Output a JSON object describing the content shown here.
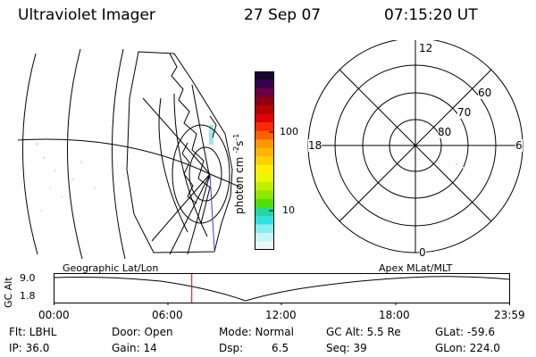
{
  "header": {
    "title": "Ultraviolet Imager",
    "date": "27 Sep 07",
    "time": "07:15:20 UT"
  },
  "colorbar": {
    "unit": "photon cm",
    "sup1": "-2",
    "s": "s",
    "sup2": "-1",
    "tick_high": "100",
    "tick_low": "10",
    "colors": [
      "#1a0030",
      "#3a0050",
      "#6a0040",
      "#8e0010",
      "#b80000",
      "#e00000",
      "#ff2a00",
      "#ff6000",
      "#ff9800",
      "#ffb400",
      "#ffd000",
      "#ffee00",
      "#eaf800",
      "#c0f000",
      "#8cea00",
      "#50e000",
      "#20d8a0",
      "#30e0e0",
      "#88ecf0",
      "#c8f4f8",
      "#eaf8fa"
    ]
  },
  "polar": {
    "labels": {
      "top": "12",
      "bottom": "0",
      "left": "18",
      "right": "6",
      "r60": "60",
      "r70": "70",
      "r80": "80"
    }
  },
  "timeline": {
    "left_label": "Geographic Lat/Lon",
    "right_label": "Apex MLat/MLT",
    "axis_title": "GC Alt",
    "y_top": "9.0",
    "y_bottom": "1.8",
    "x_ticks": [
      "00:00",
      "06:00",
      "12:00",
      "18:00",
      "23:59"
    ],
    "current_time_fraction": 0.3023
  },
  "info": {
    "row1": {
      "flt": "Flt: LBHL",
      "door": "Door: Open",
      "mode": "Mode: Normal",
      "gcalt": "GC Alt: 5.5 Re",
      "glat": "GLat: -59.6"
    },
    "row2": {
      "ip": "IP: 36.0",
      "gain": "Gain: 14",
      "dsp_label": "Dsp:",
      "dsp_value": "6.5",
      "seq": "Seq: 39",
      "glon": "GLon: 224.0"
    }
  }
}
